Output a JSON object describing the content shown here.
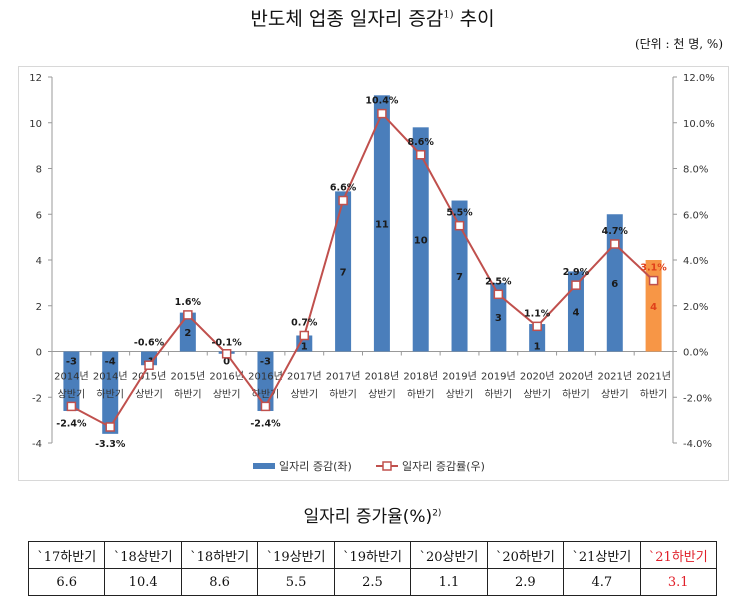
{
  "title": "반도체 업종 일자리 증감",
  "title_note": "1)",
  "title_suffix": "추이",
  "unit": "(단위 : 천 명, %)",
  "chart_data": {
    "type": "bar+line",
    "categories": [
      [
        "2014년",
        "상반기"
      ],
      [
        "2014년",
        "하반기"
      ],
      [
        "2015년",
        "상반기"
      ],
      [
        "2015년",
        "하반기"
      ],
      [
        "2016년",
        "상반기"
      ],
      [
        "2016년",
        "하반기"
      ],
      [
        "2017년",
        "상반기"
      ],
      [
        "2017년",
        "하반기"
      ],
      [
        "2018년",
        "상반기"
      ],
      [
        "2018년",
        "하반기"
      ],
      [
        "2019년",
        "상반기"
      ],
      [
        "2019년",
        "하반기"
      ],
      [
        "2020년",
        "상반기"
      ],
      [
        "2020년",
        "하반기"
      ],
      [
        "2021년",
        "상반기"
      ],
      [
        "2021년",
        "하반기"
      ]
    ],
    "series": [
      {
        "name": "일자리 증감(좌)",
        "type": "bar",
        "axis": "left",
        "values": [
          -2.6,
          -3.6,
          -0.6,
          1.7,
          -0.1,
          -2.6,
          0.7,
          7.0,
          11.2,
          9.8,
          6.6,
          3.0,
          1.2,
          3.5,
          6.0,
          4.0
        ],
        "labels": [
          "-3",
          "-4",
          "-1",
          "2",
          "0",
          "-3",
          "1",
          "7",
          "11",
          "10",
          "7",
          "3",
          "1",
          "4",
          "6",
          "4"
        ],
        "color": "#4a7ebb",
        "highlight_color": "#f79646",
        "highlight_index": 15
      },
      {
        "name": "일자리 증감률(우)",
        "type": "line",
        "axis": "right",
        "values": [
          -2.4,
          -3.3,
          -0.6,
          1.6,
          -0.1,
          -2.4,
          0.7,
          6.6,
          10.4,
          8.6,
          5.5,
          2.5,
          1.1,
          2.9,
          4.7,
          3.1
        ],
        "labels": [
          "-2.4%",
          "-3.3%",
          "-0.6%",
          "1.6%",
          "-0.1%",
          "-2.4%",
          "0.7%",
          "6.6%",
          "10.4%",
          "8.6%",
          "5.5%",
          "2.5%",
          "1.1%",
          "2.9%",
          "4.7%",
          "3.1%"
        ],
        "color": "#c0504d"
      }
    ],
    "left_axis": {
      "min": -4,
      "max": 12,
      "ticks": [
        "-4",
        "-2",
        "0",
        "2",
        "4",
        "6",
        "8",
        "10",
        "12"
      ]
    },
    "right_axis": {
      "min": -4,
      "max": 12,
      "ticks": [
        "-4.0%",
        "-2.0%",
        "0.0%",
        "2.0%",
        "4.0%",
        "6.0%",
        "8.0%",
        "10.0%",
        "12.0%"
      ]
    },
    "grid": false,
    "legend": "bottom"
  },
  "table": {
    "title": "일자리 증가율(%)",
    "title_note": "2)",
    "headers": [
      "`17하반기",
      "`18상반기",
      "`18하반기",
      "`19상반기",
      "`19하반기",
      "`20상반기",
      "`20하반기",
      "`21상반기",
      "`21하반기"
    ],
    "values": [
      "6.6",
      "10.4",
      "8.6",
      "5.5",
      "2.5",
      "1.1",
      "2.9",
      "4.7",
      "3.1"
    ],
    "highlight_color": "#e0202a"
  }
}
